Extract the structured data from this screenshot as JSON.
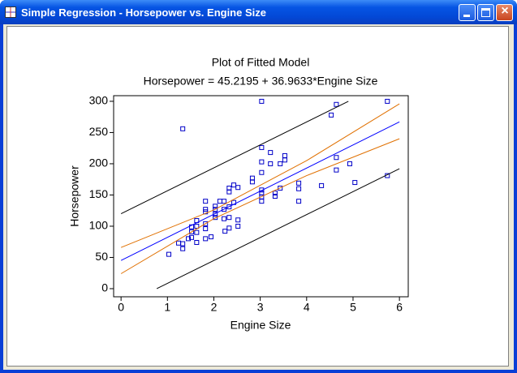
{
  "window": {
    "title": "Simple Regression - Horsepower vs. Engine Size"
  },
  "chart_data": {
    "type": "scatter",
    "title": "Plot of Fitted Model",
    "subtitle": "Horsepower = 45.2195 + 36.9633*Engine Size",
    "x_label": "Engine Size",
    "y_label": "Horsepower",
    "xlim": [
      -0.16,
      6.19
    ],
    "ylim": [
      -13,
      309
    ],
    "xticks": [
      0,
      1,
      2,
      3,
      4,
      5,
      6
    ],
    "yticks": [
      0,
      50,
      100,
      150,
      200,
      250,
      300
    ],
    "series": [
      {
        "style": "points",
        "color": "#0000c8",
        "x": [
          1.03,
          1.24,
          1.33,
          1.33,
          1.33,
          1.45,
          1.52,
          1.52,
          1.52,
          1.63,
          1.63,
          1.63,
          1.63,
          1.82,
          1.82,
          1.82,
          1.82,
          1.82,
          1.82,
          1.94,
          2.03,
          2.03,
          2.03,
          2.03,
          2.13,
          2.22,
          2.22,
          2.22,
          2.24,
          2.33,
          2.33,
          2.33,
          2.33,
          2.33,
          2.43,
          2.43,
          2.52,
          2.52,
          2.52,
          2.83,
          2.83,
          3.03,
          3.03,
          3.03,
          3.03,
          3.03,
          3.03,
          3.03,
          3.03,
          3.22,
          3.22,
          3.32,
          3.32,
          3.43,
          3.43,
          3.53,
          3.53,
          3.83,
          3.83,
          3.83,
          4.32,
          4.53,
          4.64,
          4.64,
          4.64,
          4.93,
          5.04,
          5.74,
          5.74
        ],
        "values": [
          55,
          73,
          64,
          256,
          72,
          80,
          99,
          91,
          82,
          74,
          90,
          100,
          109,
          80,
          96,
          104,
          123,
          140,
          127,
          83,
          114,
          119,
          132,
          127,
          140,
          140,
          127,
          112,
          92,
          114,
          131,
          155,
          161,
          97,
          166,
          138,
          162,
          110,
          100,
          177,
          171,
          300,
          226,
          203,
          186,
          158,
          153,
          147,
          140,
          218,
          200,
          153,
          148,
          161,
          200,
          213,
          206,
          169,
          160,
          140,
          165,
          278,
          295,
          210,
          190,
          200,
          170,
          300,
          181
        ]
      },
      {
        "style": "line",
        "color": "#000000",
        "x": [
          0,
          4.9
        ],
        "values": [
          120,
          300
        ]
      },
      {
        "style": "line",
        "color": "#e07000",
        "x": [
          0,
          2,
          4,
          6
        ],
        "values": [
          66,
          126,
          205,
          296
        ]
      },
      {
        "style": "line",
        "color": "#0000ff",
        "x": [
          0,
          6
        ],
        "values": [
          45.2195,
          267
        ]
      },
      {
        "style": "line",
        "color": "#e07000",
        "x": [
          0,
          2,
          4,
          6
        ],
        "values": [
          24,
          112,
          181,
          240
        ]
      },
      {
        "style": "line",
        "color": "#000000",
        "x": [
          0.77,
          6
        ],
        "values": [
          0,
          192
        ]
      }
    ]
  }
}
